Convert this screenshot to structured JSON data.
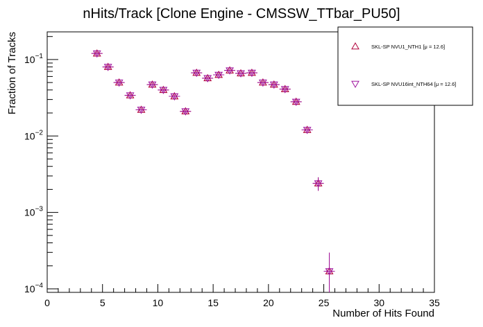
{
  "chart_data": {
    "type": "scatter",
    "title": "nHits/Track [Clone Engine - CMSSW_TTbar_PU50]",
    "xlabel": "Number of Hits Found",
    "ylabel": "Fraction of Tracks",
    "xlim": [
      0,
      35
    ],
    "ylim": [
      9e-05,
      0.23
    ],
    "yscale": "log",
    "grid": false,
    "legend_position": "top-right",
    "x_ticks": [
      {
        "value": 0,
        "label": "0"
      },
      {
        "value": 5,
        "label": "5"
      },
      {
        "value": 10,
        "label": "10"
      },
      {
        "value": 15,
        "label": "15"
      },
      {
        "value": 20,
        "label": "20"
      },
      {
        "value": 25,
        "label": "25"
      },
      {
        "value": 30,
        "label": "30"
      },
      {
        "value": 35,
        "label": "35"
      }
    ],
    "y_ticks": [
      {
        "value": 0.1,
        "base": "10",
        "exp": "−1"
      },
      {
        "value": 0.01,
        "base": "10",
        "exp": "−2"
      },
      {
        "value": 0.001,
        "base": "10",
        "exp": "−3"
      },
      {
        "value": 0.0001,
        "base": "10",
        "exp": "−4"
      }
    ],
    "series": [
      {
        "name": "SKL-SP NVU1_NTH1 [μ = 12.6]",
        "marker": "triangle-up",
        "color": "#b0003a",
        "x": [
          4.5,
          5.5,
          6.5,
          7.5,
          8.5,
          9.5,
          10.5,
          11.5,
          12.5,
          13.5,
          14.5,
          15.5,
          16.5,
          17.5,
          18.5,
          19.5,
          20.5,
          21.5,
          22.5,
          23.5,
          24.5,
          25.5
        ],
        "y": [
          0.12,
          0.08,
          0.05,
          0.034,
          0.022,
          0.047,
          0.04,
          0.033,
          0.021,
          0.067,
          0.057,
          0.063,
          0.072,
          0.066,
          0.067,
          0.05,
          0.047,
          0.041,
          0.028,
          0.012,
          0.0024,
          0.00017
        ]
      },
      {
        "name": "SKL-SP NVU16int_NTH64 [μ = 12.6]",
        "marker": "triangle-down",
        "color": "#a0179f",
        "x": [
          4.5,
          5.5,
          6.5,
          7.5,
          8.5,
          9.5,
          10.5,
          11.5,
          12.5,
          13.5,
          14.5,
          15.5,
          16.5,
          17.5,
          18.5,
          19.5,
          20.5,
          21.5,
          22.5,
          23.5,
          24.5,
          25.5
        ],
        "y": [
          0.12,
          0.08,
          0.05,
          0.034,
          0.022,
          0.047,
          0.04,
          0.033,
          0.021,
          0.067,
          0.057,
          0.063,
          0.072,
          0.066,
          0.067,
          0.05,
          0.047,
          0.041,
          0.028,
          0.012,
          0.0024,
          0.00017
        ]
      }
    ]
  }
}
